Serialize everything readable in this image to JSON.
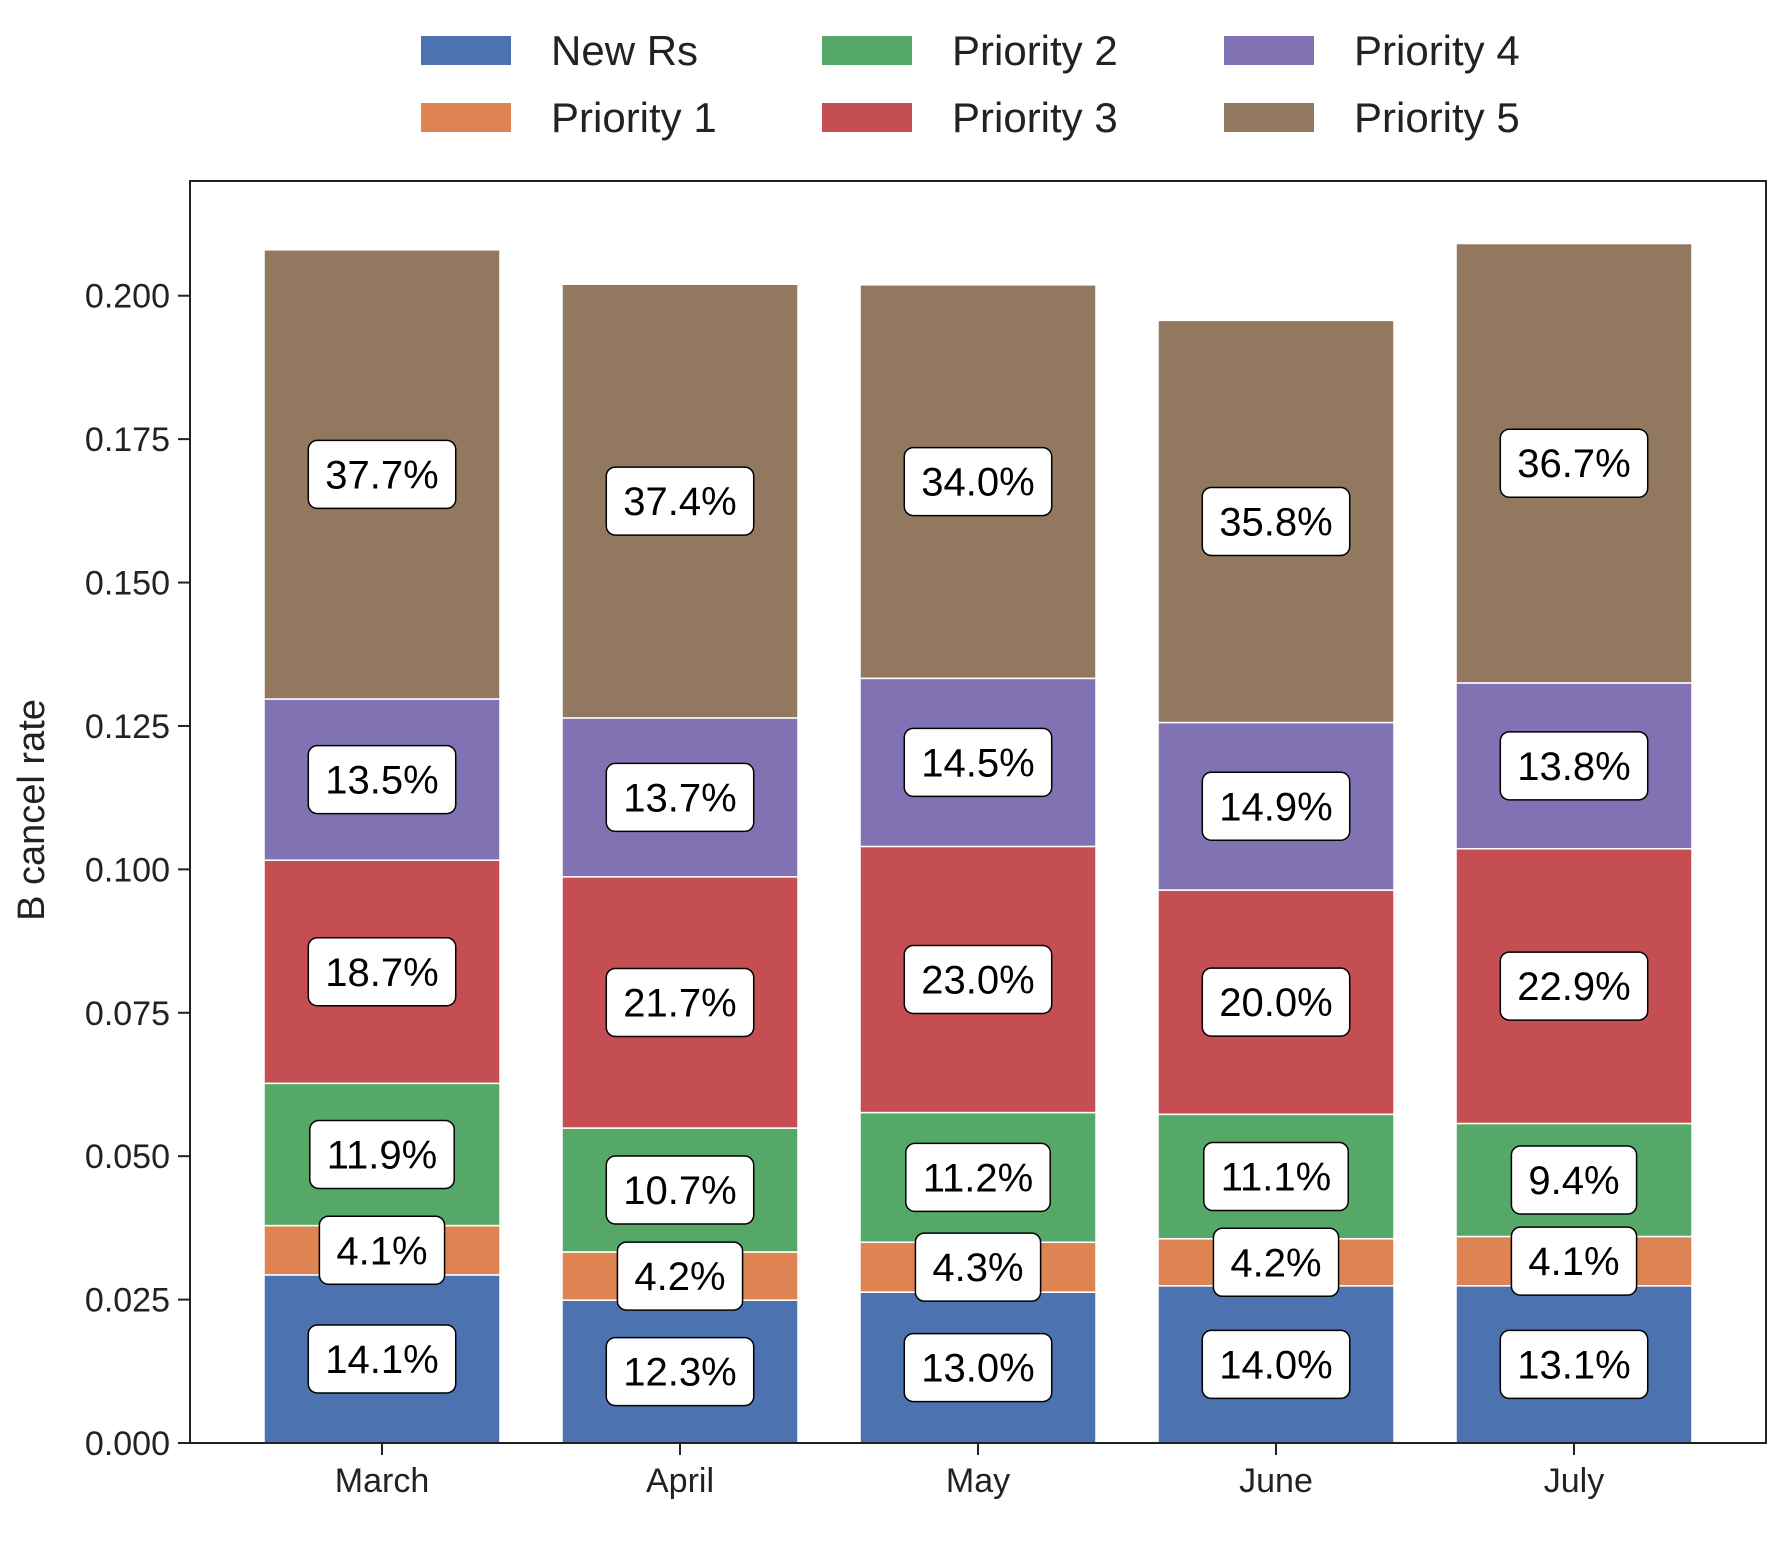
{
  "chart_data": {
    "type": "bar",
    "stacked": true,
    "title": "",
    "xlabel": "",
    "ylabel": "B cancel rate",
    "ylim": [
      0,
      0.22
    ],
    "yticks": [
      "0.000",
      "0.025",
      "0.050",
      "0.075",
      "0.100",
      "0.125",
      "0.150",
      "0.175",
      "0.200"
    ],
    "legend_position": "top-center",
    "grid": false,
    "categories": [
      "March",
      "April",
      "May",
      "June",
      "July"
    ],
    "series": [
      {
        "name": "New Rs",
        "color": "#4C72B0",
        "values": [
          0.0293,
          0.0249,
          0.0263,
          0.0274,
          0.0274
        ],
        "labels": [
          "14.1%",
          "12.3%",
          "13.0%",
          "14.0%",
          "13.1%"
        ]
      },
      {
        "name": "Priority 1",
        "color": "#DD8452",
        "values": [
          0.0086,
          0.0084,
          0.0087,
          0.0082,
          0.0086
        ],
        "labels": [
          "4.1%",
          "4.2%",
          "4.3%",
          "4.2%",
          "4.1%"
        ]
      },
      {
        "name": "Priority 2",
        "color": "#55A868",
        "values": [
          0.0248,
          0.0216,
          0.0226,
          0.0217,
          0.0197
        ],
        "labels": [
          "11.9%",
          "10.7%",
          "11.2%",
          "11.1%",
          "9.4%"
        ]
      },
      {
        "name": "Priority 3",
        "color": "#C44E52",
        "values": [
          0.0389,
          0.0438,
          0.0464,
          0.0391,
          0.0479
        ],
        "labels": [
          "18.7%",
          "21.7%",
          "23.0%",
          "20.0%",
          "22.9%"
        ]
      },
      {
        "name": "Priority 4",
        "color": "#8172B3",
        "values": [
          0.0281,
          0.0277,
          0.0293,
          0.0292,
          0.0289
        ],
        "labels": [
          "13.5%",
          "13.7%",
          "14.5%",
          "14.9%",
          "13.8%"
        ]
      },
      {
        "name": "Priority 5",
        "color": "#937860",
        "values": [
          0.0783,
          0.0756,
          0.0686,
          0.0701,
          0.0766
        ],
        "labels": [
          "37.7%",
          "37.4%",
          "34.0%",
          "35.8%",
          "36.7%"
        ]
      }
    ]
  }
}
